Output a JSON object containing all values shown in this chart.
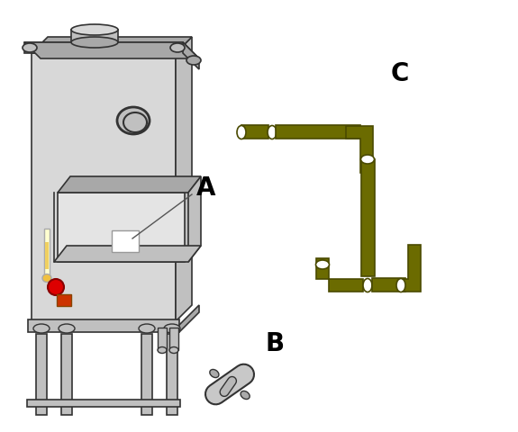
{
  "bg_color": "#ffffff",
  "pipe_color": "#6b6b00",
  "pipe_dark": "#4a4a00",
  "machine_light": "#d8d8d8",
  "machine_mid": "#c0c0c0",
  "machine_dark": "#a8a8a8",
  "outline": "#333333",
  "label_A": "A",
  "label_B": "B",
  "label_C": "C",
  "label_fontsize": 20,
  "label_fontweight": "bold"
}
